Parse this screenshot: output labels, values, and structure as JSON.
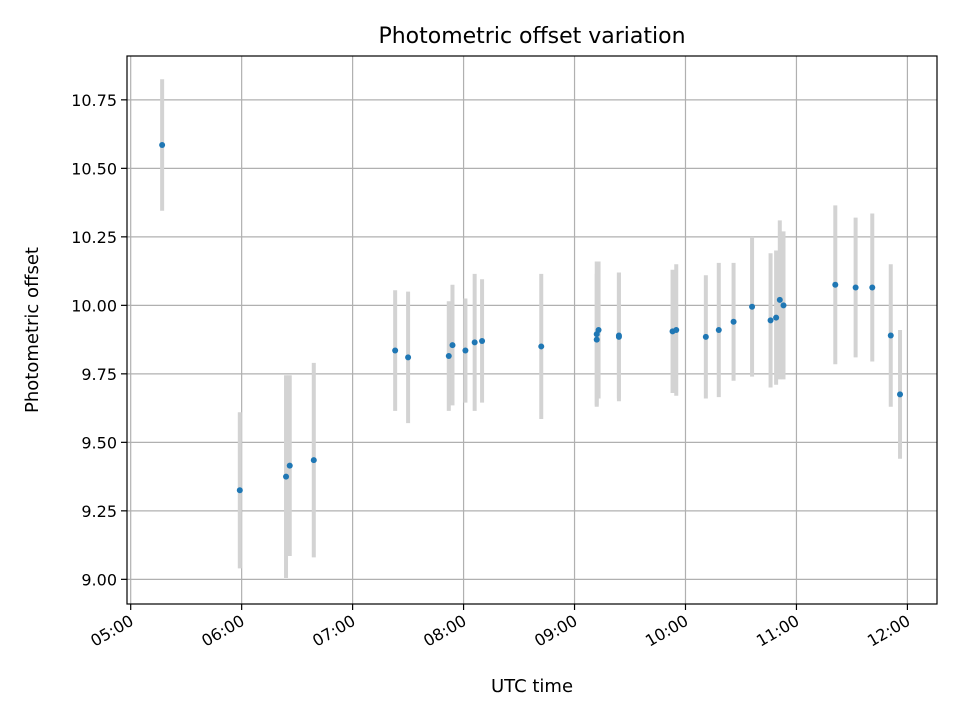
{
  "chart_data": {
    "type": "scatter",
    "title": "Photometric offset variation",
    "xlabel": "UTC time",
    "ylabel": "Photometric offset",
    "xlim": [
      "04:58",
      "12:16"
    ],
    "ylim": [
      8.91,
      10.91
    ],
    "grid": true,
    "x_ticks": [
      "05:00",
      "06:00",
      "07:00",
      "08:00",
      "09:00",
      "10:00",
      "11:00",
      "12:00"
    ],
    "y_ticks": [
      "9.00",
      "9.25",
      "9.50",
      "9.75",
      "10.00",
      "10.25",
      "10.50",
      "10.75"
    ],
    "colors": {
      "point": "#1f77b4",
      "errorbar": "#d3d3d3"
    },
    "points": [
      {
        "x": "05:17",
        "y": 10.585,
        "err": 0.24
      },
      {
        "x": "05:59",
        "y": 9.325,
        "err": 0.285
      },
      {
        "x": "06:24",
        "y": 9.375,
        "err": 0.37
      },
      {
        "x": "06:26",
        "y": 9.415,
        "err": 0.33
      },
      {
        "x": "06:39",
        "y": 9.435,
        "err": 0.355
      },
      {
        "x": "07:23",
        "y": 9.835,
        "err": 0.22
      },
      {
        "x": "07:30",
        "y": 9.81,
        "err": 0.24
      },
      {
        "x": "07:52",
        "y": 9.815,
        "err": 0.2
      },
      {
        "x": "07:54",
        "y": 9.855,
        "err": 0.22
      },
      {
        "x": "08:01",
        "y": 9.835,
        "err": 0.19
      },
      {
        "x": "08:06",
        "y": 9.865,
        "err": 0.25
      },
      {
        "x": "08:10",
        "y": 9.87,
        "err": 0.225
      },
      {
        "x": "08:42",
        "y": 9.85,
        "err": 0.265
      },
      {
        "x": "09:12",
        "y": 9.875,
        "err": 0.24
      },
      {
        "x": "09:12",
        "y": 9.895,
        "err": 0.265
      },
      {
        "x": "09:13",
        "y": 9.91,
        "err": 0.25
      },
      {
        "x": "09:24",
        "y": 9.885,
        "err": 0.235
      },
      {
        "x": "09:24",
        "y": 9.89,
        "err": 0.23
      },
      {
        "x": "09:53",
        "y": 9.905,
        "err": 0.225
      },
      {
        "x": "09:55",
        "y": 9.91,
        "err": 0.24
      },
      {
        "x": "10:11",
        "y": 9.885,
        "err": 0.225
      },
      {
        "x": "10:18",
        "y": 9.91,
        "err": 0.245
      },
      {
        "x": "10:26",
        "y": 9.94,
        "err": 0.215
      },
      {
        "x": "10:36",
        "y": 9.995,
        "err": 0.255
      },
      {
        "x": "10:46",
        "y": 9.945,
        "err": 0.245
      },
      {
        "x": "10:49",
        "y": 9.955,
        "err": 0.245
      },
      {
        "x": "10:51",
        "y": 10.02,
        "err": 0.29
      },
      {
        "x": "10:53",
        "y": 10.0,
        "err": 0.27
      },
      {
        "x": "11:21",
        "y": 10.075,
        "err": 0.29
      },
      {
        "x": "11:32",
        "y": 10.065,
        "err": 0.255
      },
      {
        "x": "11:41",
        "y": 10.065,
        "err": 0.27
      },
      {
        "x": "11:51",
        "y": 9.89,
        "err": 0.26
      },
      {
        "x": "11:56",
        "y": 9.675,
        "err": 0.235
      }
    ]
  }
}
